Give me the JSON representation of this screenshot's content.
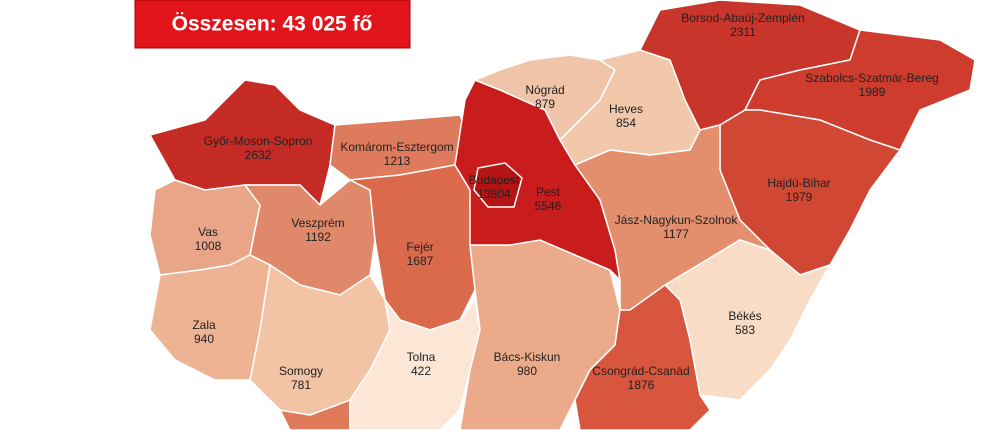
{
  "header": {
    "title": "Összesen: 43 025 fő"
  },
  "regions": [
    {
      "name": "Győr-Moson-Sopron",
      "value": 2632,
      "color": "#c32b24"
    },
    {
      "name": "Komárom-Esztergom",
      "value": 1213,
      "color": "#de7b5c"
    },
    {
      "name": "Vas",
      "value": 1008,
      "color": "#e9a587"
    },
    {
      "name": "Veszprém",
      "value": 1192,
      "color": "#e0886a"
    },
    {
      "name": "Fejér",
      "value": 1687,
      "color": "#db6a4d"
    },
    {
      "name": "Zala",
      "value": 940,
      "color": "#eeb393"
    },
    {
      "name": "Somogy",
      "value": 781,
      "color": "#f2c3a5"
    },
    {
      "name": "Tolna",
      "value": 422,
      "color": "#fce6d5"
    },
    {
      "name": "Bács-Kiskun",
      "value": 980,
      "color": "#ebab8b"
    },
    {
      "name": "Pest",
      "value": 5546,
      "color": "#c91c1c"
    },
    {
      "name": "Budapest",
      "value": 13804,
      "color": "#b51414"
    },
    {
      "name": "Nógrád",
      "value": 879,
      "color": "#f0c4a8"
    },
    {
      "name": "Heves",
      "value": 854,
      "color": "#f2c8ab"
    },
    {
      "name": "Borsod-Abaúj-Zemplén",
      "value": 2311,
      "color": "#c8352b"
    },
    {
      "name": "Szabolcs-Szatmár-Bereg",
      "value": 1989,
      "color": "#cd3c2d"
    },
    {
      "name": "Hajdú-Bihar",
      "value": 1979,
      "color": "#d04834"
    },
    {
      "name": "Jász-Nagykun-Szolnok",
      "value": 1177,
      "color": "#e38f6e"
    },
    {
      "name": "Békés",
      "value": 583,
      "color": "#f8dcc5"
    },
    {
      "name": "Csongrád-Csanád",
      "value": 1876,
      "color": "#d8553e"
    }
  ]
}
